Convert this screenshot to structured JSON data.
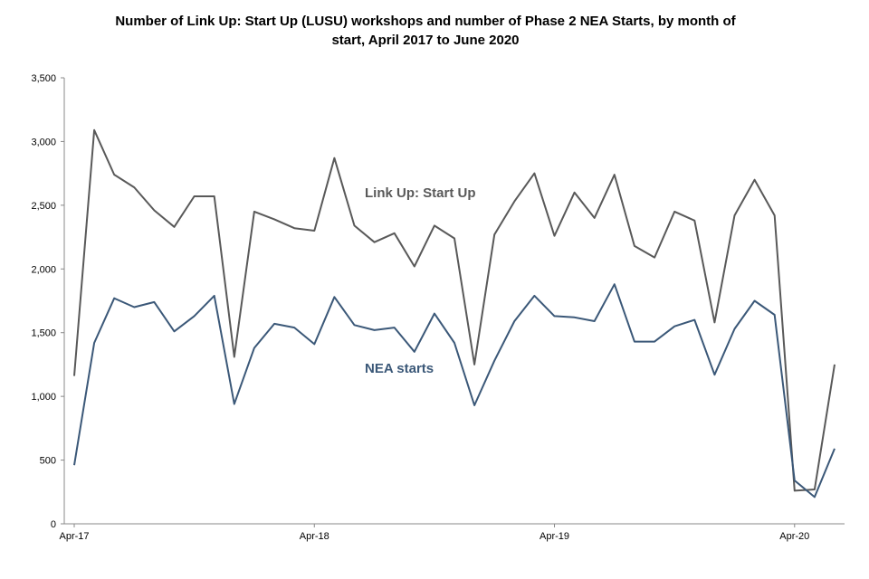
{
  "chart_data": {
    "type": "line",
    "title_lines": [
      "Number of Link Up: Start Up (LUSU) workshops and number of Phase 2 NEA Starts, by month of",
      "start, April 2017 to June 2020"
    ],
    "xlabel": "",
    "ylabel": "",
    "ylim": [
      0,
      3500
    ],
    "yticks": [
      0,
      500,
      1000,
      1500,
      2000,
      2500,
      3000,
      3500
    ],
    "ytick_labels": [
      "0",
      "500",
      "1,000",
      "1,500",
      "2,000",
      "2,500",
      "3,000",
      "3,500"
    ],
    "x": [
      "2017-04",
      "2017-05",
      "2017-06",
      "2017-07",
      "2017-08",
      "2017-09",
      "2017-10",
      "2017-11",
      "2017-12",
      "2018-01",
      "2018-02",
      "2018-03",
      "2018-04",
      "2018-05",
      "2018-06",
      "2018-07",
      "2018-08",
      "2018-09",
      "2018-10",
      "2018-11",
      "2018-12",
      "2019-01",
      "2019-02",
      "2019-03",
      "2019-04",
      "2019-05",
      "2019-06",
      "2019-07",
      "2019-08",
      "2019-09",
      "2019-10",
      "2019-11",
      "2019-12",
      "2020-01",
      "2020-02",
      "2020-03",
      "2020-04",
      "2020-05",
      "2020-06"
    ],
    "xtick_labels": [
      {
        "index": 0,
        "label": "Apr-17"
      },
      {
        "index": 12,
        "label": "Apr-18"
      },
      {
        "index": 24,
        "label": "Apr-19"
      },
      {
        "index": 36,
        "label": "Apr-20"
      }
    ],
    "grid": false,
    "legend": "none",
    "series": [
      {
        "name": "Link Up: Start Up",
        "color": "#595959",
        "values": [
          1160,
          3090,
          2740,
          2640,
          2460,
          2330,
          2570,
          2570,
          1310,
          2450,
          2390,
          2320,
          2300,
          2870,
          2340,
          2210,
          2280,
          2020,
          2340,
          2240,
          1250,
          2270,
          2530,
          2750,
          2260,
          2600,
          2400,
          2740,
          2180,
          2090,
          2450,
          2380,
          1580,
          2420,
          2700,
          2420,
          260,
          270,
          1250
        ]
      },
      {
        "name": "NEA starts",
        "color": "#3B5878",
        "values": [
          460,
          1420,
          1770,
          1700,
          1740,
          1510,
          1630,
          1790,
          940,
          1380,
          1570,
          1540,
          1410,
          1780,
          1560,
          1520,
          1540,
          1350,
          1650,
          1420,
          930,
          1280,
          1590,
          1790,
          1630,
          1620,
          1590,
          1880,
          1430,
          1430,
          1550,
          1600,
          1170,
          1530,
          1750,
          1640,
          340,
          210,
          590
        ]
      }
    ]
  }
}
